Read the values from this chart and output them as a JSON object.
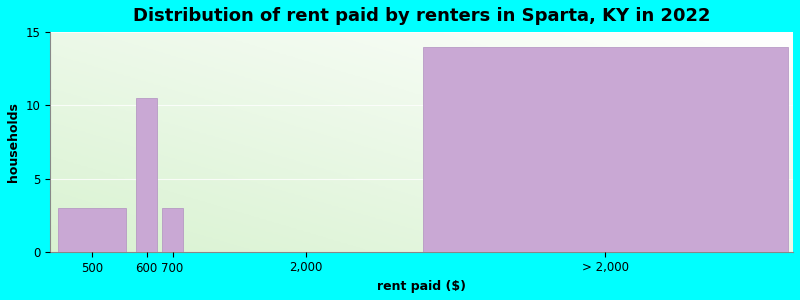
{
  "title": "Distribution of rent paid by renters in Sparta, KY in 2022",
  "xlabel": "rent paid ($)",
  "ylabel": "households",
  "categories": [
    "500",
    "600",
    "700",
    "2,000",
    "> 2,000"
  ],
  "values": [
    3,
    10.5,
    3,
    0,
    14
  ],
  "bar_color": "#c9a8d4",
  "bar_edge_color": "#b090bf",
  "ylim": [
    0,
    15
  ],
  "yticks": [
    0,
    5,
    10,
    15
  ],
  "background_outer": "#00ffff",
  "title_fontsize": 13,
  "axis_label_fontsize": 9,
  "tick_fontsize": 8.5,
  "x_positions": [
    0,
    1.5,
    2.0,
    3.5,
    7.0
  ],
  "bar_widths": [
    1.3,
    0.4,
    0.4,
    2.5,
    7.0
  ],
  "tick_positions": [
    0.65,
    1.7,
    2.2,
    4.75,
    10.5
  ],
  "xlim": [
    -0.15,
    14.1
  ]
}
